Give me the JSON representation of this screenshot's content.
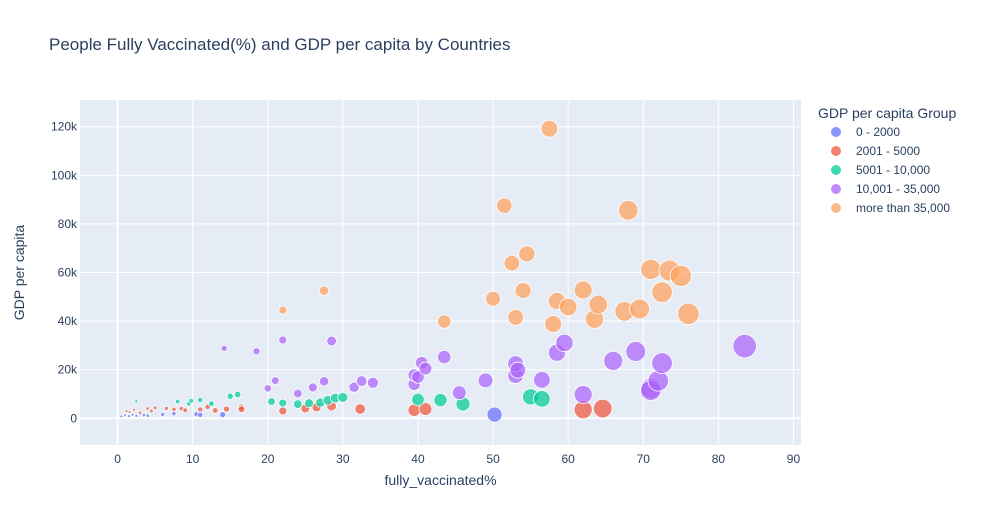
{
  "chart_data": {
    "type": "scatter",
    "title": "People Fully Vaccinated(%) and GDP per capita by Countries",
    "xlabel": "fully_vaccinated%",
    "ylabel": "GDP per capita",
    "xlim": [
      -5,
      91
    ],
    "ylim": [
      -11000,
      131000
    ],
    "x_ticks": [
      0,
      10,
      20,
      30,
      40,
      50,
      60,
      70,
      80,
      90
    ],
    "x_tick_labels": [
      "0",
      "10",
      "20",
      "30",
      "40",
      "50",
      "60",
      "70",
      "80",
      "90"
    ],
    "y_ticks": [
      0,
      20000,
      40000,
      60000,
      80000,
      100000,
      120000
    ],
    "y_tick_labels": [
      "0",
      "20k",
      "40k",
      "60k",
      "80k",
      "100k",
      "120k"
    ],
    "grid": true,
    "legend_title": "GDP per capita Group",
    "legend_position": "right",
    "series": [
      {
        "name": "0 - 2000",
        "color": "#636efa",
        "points": [
          [
            0.5,
            800
          ],
          [
            1,
            1200
          ],
          [
            1.5,
            900
          ],
          [
            2,
            1500
          ],
          [
            2.5,
            1000
          ],
          [
            3,
            1800
          ],
          [
            3.5,
            1300
          ],
          [
            4,
            1100
          ],
          [
            6,
            1600
          ],
          [
            7.5,
            1900
          ],
          [
            10.5,
            1700
          ],
          [
            11,
            1400
          ],
          [
            14,
            1500
          ],
          [
            50.2,
            1500
          ]
        ]
      },
      {
        "name": "2001 - 5000",
        "color": "#EF553B",
        "points": [
          [
            1.2,
            3000
          ],
          [
            1.6,
            2600
          ],
          [
            2.2,
            3500
          ],
          [
            3,
            2300
          ],
          [
            4,
            4000
          ],
          [
            4.5,
            3000
          ],
          [
            5,
            4300
          ],
          [
            6.5,
            4100
          ],
          [
            7.5,
            3700
          ],
          [
            8.5,
            4000
          ],
          [
            9,
            3300
          ],
          [
            11,
            3600
          ],
          [
            12,
            4700
          ],
          [
            13,
            3200
          ],
          [
            14.5,
            3800
          ],
          [
            16.5,
            4500
          ],
          [
            16.5,
            3700
          ],
          [
            22,
            3000
          ],
          [
            25,
            4000
          ],
          [
            26.5,
            4500
          ],
          [
            28.5,
            5000
          ],
          [
            32.3,
            3800
          ],
          [
            39.5,
            3300
          ],
          [
            41,
            3800
          ],
          [
            62,
            3500
          ],
          [
            64.6,
            4000
          ]
        ]
      },
      {
        "name": "5001 - 10,000",
        "color": "#00cc96",
        "points": [
          [
            2.5,
            7000
          ],
          [
            8,
            6900
          ],
          [
            9.5,
            6000
          ],
          [
            9.8,
            7200
          ],
          [
            11,
            7500
          ],
          [
            12.5,
            6000
          ],
          [
            15,
            9100
          ],
          [
            16,
            9800
          ],
          [
            20.5,
            6900
          ],
          [
            22,
            6300
          ],
          [
            24,
            5800
          ],
          [
            25.5,
            6200
          ],
          [
            27,
            6500
          ],
          [
            28,
            7400
          ],
          [
            29,
            8300
          ],
          [
            30,
            8600
          ],
          [
            40,
            7700
          ],
          [
            43,
            7500
          ],
          [
            46,
            5900
          ],
          [
            55,
            8800
          ],
          [
            56.5,
            8000
          ]
        ]
      },
      {
        "name": "10,001 - 35,000",
        "color": "#ab63fa",
        "points": [
          [
            14.2,
            28800
          ],
          [
            18.5,
            27600
          ],
          [
            20,
            12300
          ],
          [
            21,
            15500
          ],
          [
            22,
            32200
          ],
          [
            24,
            10200
          ],
          [
            26,
            12700
          ],
          [
            27.5,
            15200
          ],
          [
            28.5,
            31800
          ],
          [
            31.5,
            12800
          ],
          [
            32.5,
            15300
          ],
          [
            34,
            14600
          ],
          [
            39.5,
            14000
          ],
          [
            39.5,
            17800
          ],
          [
            40,
            17000
          ],
          [
            40.5,
            22800
          ],
          [
            41,
            20500
          ],
          [
            43.5,
            25200
          ],
          [
            45.5,
            10500
          ],
          [
            49,
            15600
          ],
          [
            53,
            17600
          ],
          [
            53,
            22500
          ],
          [
            53.3,
            19800
          ],
          [
            56.5,
            15800
          ],
          [
            58.5,
            27000
          ],
          [
            59.5,
            31000
          ],
          [
            62,
            9800
          ],
          [
            66,
            23600
          ],
          [
            69,
            27500
          ],
          [
            71,
            12300
          ],
          [
            71,
            11500
          ],
          [
            72,
            15400
          ],
          [
            72.5,
            22700
          ],
          [
            83.5,
            29700
          ]
        ]
      },
      {
        "name": "more than 35,000",
        "color": "#FFA15A",
        "points": [
          [
            22,
            44500
          ],
          [
            27.5,
            52500
          ],
          [
            43.5,
            39800
          ],
          [
            50,
            49200
          ],
          [
            51.5,
            87500
          ],
          [
            52.5,
            63800
          ],
          [
            53,
            41500
          ],
          [
            54,
            52600
          ],
          [
            54.5,
            67700
          ],
          [
            57.5,
            119200
          ],
          [
            58,
            38800
          ],
          [
            58.5,
            48300
          ],
          [
            60,
            45800
          ],
          [
            62,
            52800
          ],
          [
            63.5,
            40800
          ],
          [
            64,
            46800
          ],
          [
            67.5,
            44000
          ],
          [
            68,
            85600
          ],
          [
            69.5,
            45000
          ],
          [
            71,
            61300
          ],
          [
            72.5,
            51900
          ],
          [
            73.5,
            60800
          ],
          [
            75,
            58600
          ],
          [
            76,
            43000
          ]
        ]
      }
    ]
  }
}
